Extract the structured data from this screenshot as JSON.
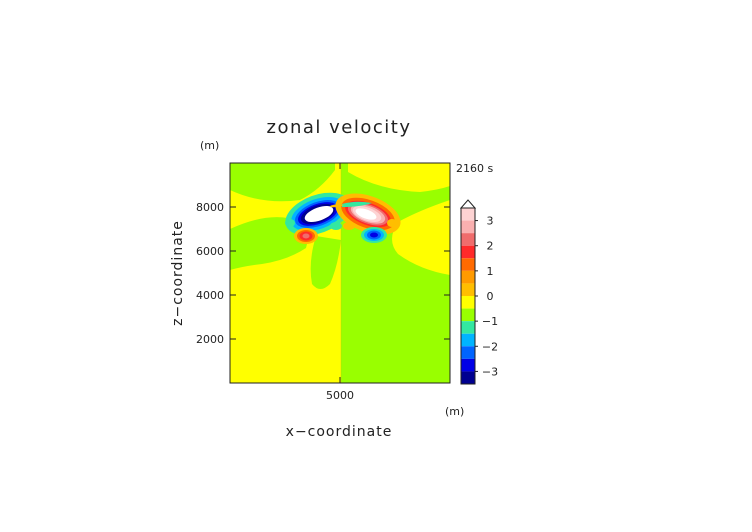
{
  "chart_data": {
    "type": "heatmap",
    "title": "zonal velocity",
    "time_label": "2160 s",
    "xlabel": "x−coordinate",
    "ylabel": "z−coordinate",
    "x_unit": "(m)",
    "y_unit": "(m)",
    "x_ticks": [
      {
        "value": 5000,
        "label": "5000"
      }
    ],
    "y_ticks": [
      {
        "value": 2000,
        "label": "2000"
      },
      {
        "value": 4000,
        "label": "4000"
      },
      {
        "value": 6000,
        "label": "6000"
      },
      {
        "value": 8000,
        "label": "8000"
      }
    ],
    "xlim": [
      0,
      10000
    ],
    "ylim": [
      0,
      10000
    ],
    "background_levels": {
      "left_half": "yellow band (0 to 0.5)",
      "right_half": "green band (0 to -0.5)"
    },
    "features": [
      {
        "name": "left upper vortex",
        "x": 4150,
        "z": 7650,
        "min_value": -3.5
      },
      {
        "name": "right upper vortex",
        "x": 5950,
        "z": 7650,
        "max_value": 3.5
      },
      {
        "name": "left lower lobe",
        "x": 3450,
        "z": 6700,
        "max_value": 2
      },
      {
        "name": "right lower lobe",
        "x": 6500,
        "z": 6700,
        "min_value": -2
      },
      {
        "name": "central plume",
        "x": 4300,
        "z": 5200,
        "value": 0
      }
    ],
    "colorbar": {
      "tick_labels": [
        "3",
        "2",
        "1",
        "0",
        "−1",
        "−2",
        "−3"
      ],
      "tick_values": [
        3,
        2,
        1,
        0,
        -1,
        -2,
        -3
      ],
      "range": [
        -3.5,
        3.5
      ],
      "step": 0.5,
      "colors": [
        "#fdd3d3",
        "#fab0b0",
        "#f06c6c",
        "#ff2a2a",
        "#ff6a00",
        "#ff9a00",
        "#ffbe00",
        "#ffff00",
        "#99ff00",
        "#33e8a0",
        "#00b4ff",
        "#0064ff",
        "#0000e6",
        "#000090"
      ]
    }
  }
}
